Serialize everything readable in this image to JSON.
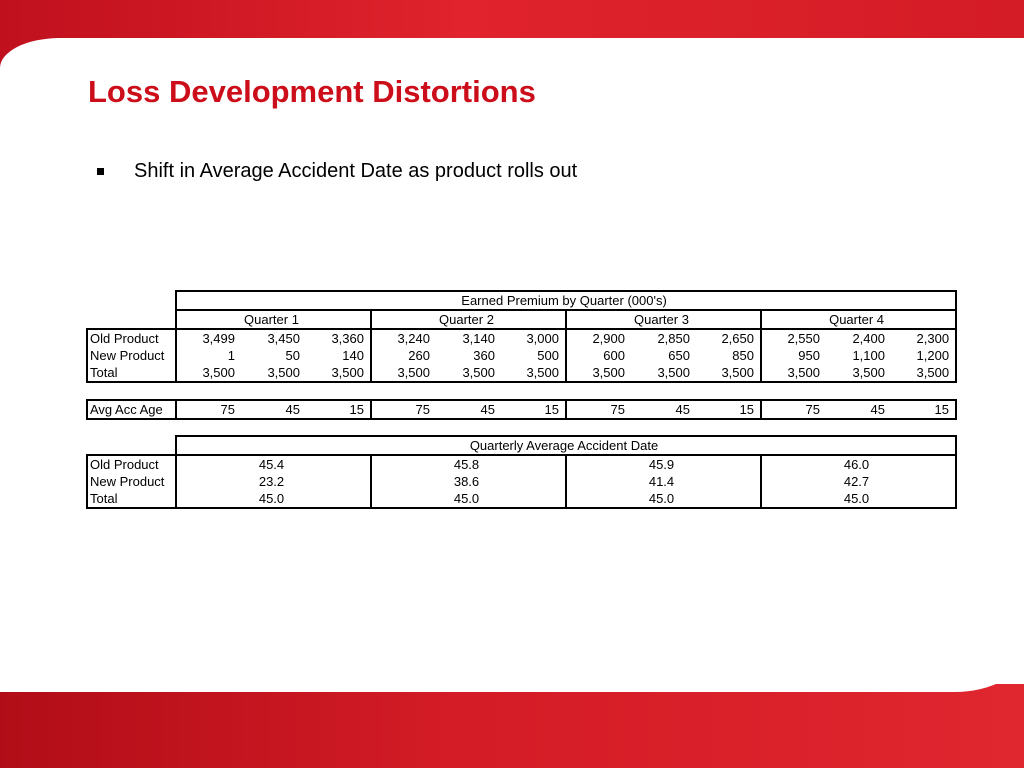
{
  "slide": {
    "title": "Loss Development Distortions",
    "bullet": "Shift in Average Accident Date as product rolls out"
  },
  "premium_table": {
    "header": "Earned Premium by Quarter (000's)",
    "quarters": [
      "Quarter 1",
      "Quarter 2",
      "Quarter 3",
      "Quarter 4"
    ],
    "rows": [
      {
        "label": "Old Product",
        "values": [
          "3,499",
          "3,450",
          "3,360",
          "3,240",
          "3,140",
          "3,000",
          "2,900",
          "2,850",
          "2,650",
          "2,550",
          "2,400",
          "2,300"
        ]
      },
      {
        "label": "New Product",
        "values": [
          "1",
          "50",
          "140",
          "260",
          "360",
          "500",
          "600",
          "650",
          "850",
          "950",
          "1,100",
          "1,200"
        ]
      },
      {
        "label": "Total",
        "values": [
          "3,500",
          "3,500",
          "3,500",
          "3,500",
          "3,500",
          "3,500",
          "3,500",
          "3,500",
          "3,500",
          "3,500",
          "3,500",
          "3,500"
        ]
      }
    ]
  },
  "age_row": {
    "label": "Avg Acc Age",
    "values": [
      "75",
      "45",
      "15",
      "75",
      "45",
      "15",
      "75",
      "45",
      "15",
      "75",
      "45",
      "15"
    ]
  },
  "avg_date_table": {
    "header": "Quarterly Average Accident Date",
    "rows": [
      {
        "label": "Old Product",
        "values": [
          "45.4",
          "45.8",
          "45.9",
          "46.0"
        ]
      },
      {
        "label": "New Product",
        "values": [
          "23.2",
          "38.6",
          "41.4",
          "42.7"
        ]
      },
      {
        "label": "Total",
        "values": [
          "45.0",
          "45.0",
          "45.0",
          "45.0"
        ]
      }
    ]
  }
}
